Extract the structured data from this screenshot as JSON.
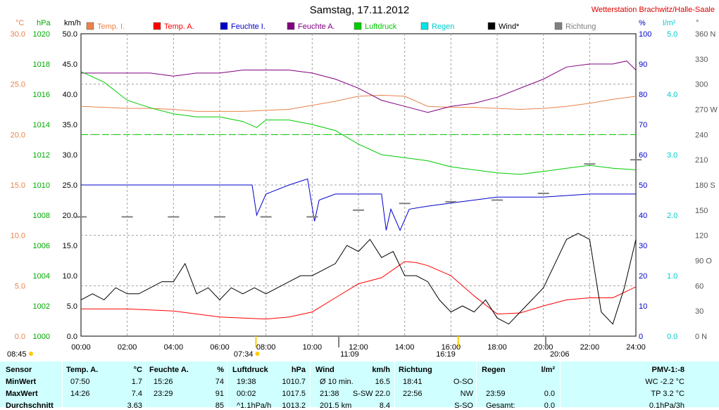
{
  "title": "Samstag, 17.11.2012",
  "station": "Wetterstation Brachwitz/Halle-Saale",
  "axes": {
    "units": {
      "temp": "°C",
      "hpa": "hPa",
      "kmh": "km/h",
      "pct": "%",
      "rain": "l/m²",
      "deg": "°"
    },
    "temp_ticks": [
      "30.0",
      "25.0",
      "20.0",
      "15.0",
      "10.0",
      "5.0",
      "0.0"
    ],
    "hpa_ticks": [
      "1020",
      "1018",
      "1016",
      "1014",
      "1012",
      "1010",
      "1008",
      "1006",
      "1004",
      "1002",
      "1000"
    ],
    "kmh_ticks": [
      "50.0",
      "45.0",
      "40.0",
      "35.0",
      "30.0",
      "25.0",
      "20.0",
      "15.0",
      "10.0",
      "5.0",
      "0.0"
    ],
    "pct_ticks": [
      "100",
      "90",
      "80",
      "70",
      "60",
      "50",
      "40",
      "30",
      "20",
      "10",
      "0"
    ],
    "rain_ticks": [
      "5.0",
      "4.0",
      "3.0",
      "2.0",
      "1.0",
      "0.0"
    ],
    "dir_ticks": [
      "360 N",
      "330",
      "300",
      "270 W",
      "240",
      "210",
      "180 S",
      "150",
      "120",
      "90 O",
      "60",
      "30",
      "0 N"
    ],
    "time_ticks": [
      "00:00",
      "02:00",
      "04:00",
      "06:00",
      "08:00",
      "10:00",
      "12:00",
      "14:00",
      "16:00",
      "18:00",
      "20:00",
      "22:00",
      "24:00"
    ]
  },
  "legend": [
    {
      "label": "Temp. I.",
      "color": "#e8834a"
    },
    {
      "label": "Temp. A.",
      "color": "#ff0000"
    },
    {
      "label": "Feuchte I.",
      "color": "#0000cc"
    },
    {
      "label": "Feuchte A.",
      "color": "#800080"
    },
    {
      "label": "Luftdruck",
      "color": "#00cc00"
    },
    {
      "label": "Regen",
      "color": "#00e5e5"
    },
    {
      "label": "Wind*",
      "color": "#000000"
    },
    {
      "label": "Richtung",
      "color": "#808080"
    }
  ],
  "sun_markers": {
    "left_time": "08:45",
    "sunrise": "07:34",
    "noon": "11:09",
    "sunset": "16:19",
    "moon": "20:06"
  },
  "stats": {
    "sensor": {
      "header": "Sensor",
      "rows": [
        "MinWert",
        "MaxWert",
        "Durchschnitt"
      ]
    },
    "temp_a": {
      "header": "Temp. A.",
      "unit": "°C",
      "rows": [
        [
          "07:50",
          "1.7"
        ],
        [
          "14:26",
          "7.4"
        ],
        [
          "",
          "3.63"
        ]
      ]
    },
    "feuchte": {
      "header": "Feuchte A.",
      "unit": "%",
      "rows": [
        [
          "15:26",
          "74"
        ],
        [
          "23:29",
          "91"
        ],
        [
          "",
          "85"
        ]
      ]
    },
    "luftdruck": {
      "header": "Luftdruck",
      "unit": "hPa",
      "rows": [
        [
          "19:38",
          "1010.7"
        ],
        [
          "00:02",
          "1017.5"
        ],
        [
          "^1.1hPa/h",
          "1013.2"
        ]
      ]
    },
    "wind": {
      "header": "Wind",
      "unit": "km/h",
      "rows": [
        [
          "Ø 10 min.",
          "16.5"
        ],
        [
          "21:38",
          "S-SW 22.0"
        ],
        [
          "201.5 km",
          "8.4"
        ]
      ]
    },
    "richtung": {
      "header": "Richtung",
      "unit": "",
      "rows": [
        [
          "18:41",
          "O-SO"
        ],
        [
          "22:56",
          "NW"
        ],
        [
          "",
          "S-SO"
        ]
      ]
    },
    "regen": {
      "header": "Regen",
      "unit": "l/m²",
      "rows": [
        [
          "",
          ""
        ],
        [
          "23:59",
          "0.0"
        ],
        [
          "Gesamt:",
          "0.0"
        ]
      ]
    },
    "pmv": {
      "header": "PMV-1:-8",
      "rows": [
        "WC -2.2 °C",
        "TP 3.2 °C",
        "0.1hPa/3h"
      ]
    }
  },
  "chart_data": {
    "type": "line",
    "x_range": [
      "00:00",
      "24:00"
    ],
    "series": [
      {
        "name": "Temp. I.",
        "axis": "temp",
        "color": "#e8834a",
        "x": [
          0,
          1,
          2,
          3,
          4,
          5,
          6,
          7,
          8,
          9,
          10,
          11,
          12,
          13,
          14,
          15,
          16,
          17,
          18,
          19,
          20,
          21,
          22,
          23,
          24
        ],
        "values": [
          22.8,
          22.7,
          22.6,
          22.6,
          22.5,
          22.3,
          22.3,
          22.3,
          22.4,
          22.5,
          22.9,
          23.3,
          23.8,
          23.9,
          23.8,
          22.8,
          22.7,
          22.7,
          22.6,
          22.5,
          22.6,
          22.8,
          23.1,
          23.5,
          23.8
        ]
      },
      {
        "name": "Temp. A.",
        "axis": "temp",
        "color": "#ff0000",
        "x": [
          0,
          1,
          2,
          3,
          4,
          5,
          6,
          7,
          8,
          9,
          10,
          11,
          12,
          13,
          14,
          14.5,
          15,
          16,
          17,
          18,
          19,
          20,
          21,
          22,
          23,
          24
        ],
        "values": [
          2.7,
          2.7,
          2.7,
          2.6,
          2.5,
          2.2,
          1.9,
          1.8,
          1.7,
          1.9,
          2.4,
          3.8,
          5.2,
          5.8,
          7.4,
          7.3,
          7.0,
          6.0,
          4.0,
          2.2,
          2.3,
          3.0,
          3.6,
          3.8,
          3.8,
          4.9
        ]
      },
      {
        "name": "Feuchte I.",
        "axis": "pct",
        "color": "#0000cc",
        "x": [
          0,
          2,
          4,
          6,
          7.4,
          7.6,
          8,
          9,
          9.8,
          10.1,
          10.3,
          11,
          12,
          13,
          13.2,
          13.4,
          13.8,
          14.2,
          15,
          16,
          17,
          18,
          20,
          22,
          24
        ],
        "values": [
          50,
          50,
          50,
          50,
          50,
          40,
          47,
          50,
          52,
          38,
          45,
          47,
          47,
          47,
          35,
          42,
          35,
          42,
          43,
          44,
          45,
          46,
          46,
          47,
          47
        ]
      },
      {
        "name": "Feuchte A.",
        "axis": "pct",
        "color": "#800080",
        "x": [
          0,
          1,
          2,
          3,
          4,
          5,
          6,
          7,
          8,
          9,
          10,
          11,
          12,
          13,
          14,
          15,
          16,
          17,
          18,
          19,
          20,
          21,
          22,
          23,
          23.6,
          24
        ],
        "values": [
          87,
          87,
          87,
          87,
          86,
          87,
          87,
          88,
          88,
          88,
          87,
          85,
          82,
          78,
          76,
          74,
          76,
          77,
          79,
          82,
          85,
          89,
          90,
          90,
          91,
          88
        ]
      },
      {
        "name": "Luftdruck",
        "axis": "hpa",
        "color": "#00cc00",
        "x": [
          0,
          1,
          2,
          3,
          4,
          5,
          6,
          7,
          7.6,
          8,
          9,
          10,
          11,
          12,
          13,
          14,
          15,
          16,
          17,
          18,
          19,
          20,
          21,
          22,
          23,
          24
        ],
        "values": [
          1017.5,
          1016.8,
          1015.6,
          1015.1,
          1014.7,
          1014.5,
          1014.5,
          1014.2,
          1013.8,
          1014.3,
          1014.3,
          1014.0,
          1013.6,
          1012.7,
          1012.0,
          1011.8,
          1011.6,
          1011.2,
          1011.0,
          1010.8,
          1010.7,
          1010.9,
          1011.1,
          1011.3,
          1011.1,
          1011.0
        ]
      },
      {
        "name": "Wind*",
        "axis": "kmh",
        "color": "#000000",
        "x": [
          0,
          0.5,
          1,
          1.5,
          2,
          2.5,
          3,
          3.5,
          4,
          4.5,
          5,
          5.5,
          6,
          6.5,
          7,
          7.5,
          8,
          8.5,
          9,
          9.5,
          10,
          10.5,
          11,
          11.5,
          12,
          12.5,
          13,
          13.5,
          14,
          14.5,
          15,
          15.5,
          16,
          16.5,
          17,
          17.5,
          18,
          18.5,
          19,
          19.5,
          20,
          20.5,
          21,
          21.5,
          22,
          22.5,
          23,
          23.5,
          24
        ],
        "values": [
          6,
          7,
          6,
          8,
          7,
          7,
          8,
          9,
          9,
          12,
          7,
          8,
          6,
          8,
          7,
          8,
          7,
          8,
          9,
          10,
          10,
          11,
          12,
          15,
          14,
          16,
          13,
          14,
          10,
          10,
          9,
          6,
          4,
          5,
          4,
          6,
          3,
          2,
          4,
          6,
          8,
          12,
          16,
          17,
          16,
          4,
          2,
          8,
          16
        ]
      },
      {
        "name": "Richtung",
        "axis": "deg",
        "color": "#808080",
        "style": "dots",
        "x": [
          0,
          2,
          4,
          6,
          8,
          10,
          12,
          14,
          16,
          18,
          20,
          22,
          24
        ],
        "values": [
          142,
          142,
          142,
          142,
          142,
          142,
          150,
          158,
          160,
          162,
          170,
          205,
          210
        ]
      }
    ],
    "reference_lines": [
      {
        "axis": "temp",
        "value": 20.0,
        "color": "#00cc00",
        "style": "dashed"
      }
    ]
  }
}
